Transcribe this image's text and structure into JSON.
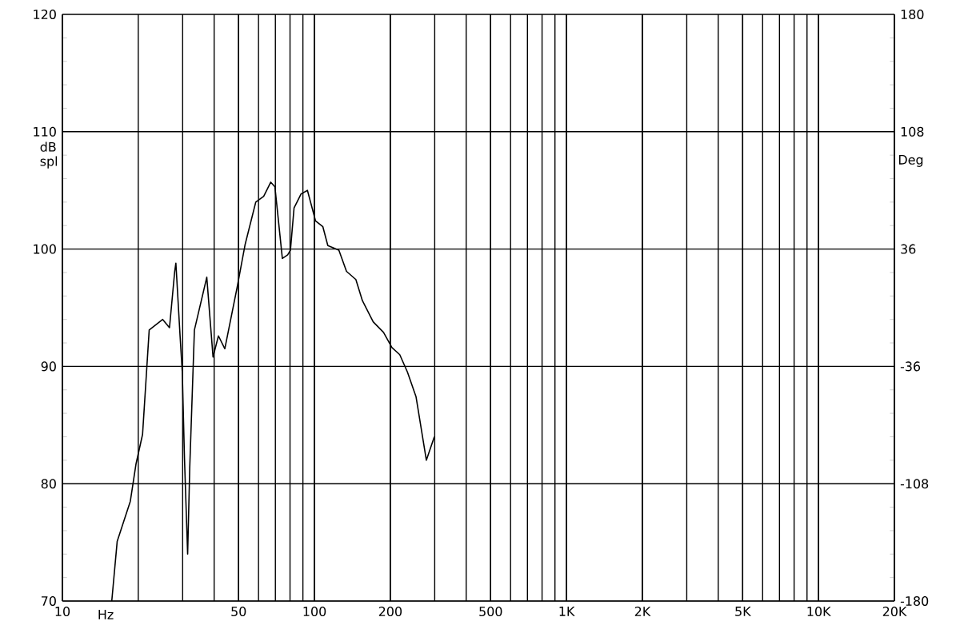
{
  "chart_data": {
    "type": "line",
    "xlabel": "Hz",
    "ylabel": "dB spl",
    "y2label": "Deg",
    "log": "x",
    "grid": true,
    "xlim": [
      10,
      20000
    ],
    "ylim": [
      70,
      120
    ],
    "y2lim": [
      -180,
      180
    ],
    "xticks": [
      {
        "value": 10,
        "label": "10"
      },
      {
        "value": 50,
        "label": "50"
      },
      {
        "value": 100,
        "label": "100"
      },
      {
        "value": 200,
        "label": "200"
      },
      {
        "value": 500,
        "label": "500"
      },
      {
        "value": 1000,
        "label": "1K"
      },
      {
        "value": 2000,
        "label": "2K"
      },
      {
        "value": 5000,
        "label": "5K"
      },
      {
        "value": 10000,
        "label": "10K"
      },
      {
        "value": 20000,
        "label": "20K"
      }
    ],
    "yticks": [
      70,
      80,
      90,
      100,
      110,
      120
    ],
    "y2ticks": [
      -180,
      -108,
      -36,
      36,
      108,
      180
    ],
    "series": [
      {
        "color": "#000000",
        "x": [
          15.7,
          16.5,
          18.6,
          19.6,
          20.8,
          22.1,
          25.0,
          26.6,
          27.9,
          28.2,
          29.3,
          29.9,
          30.5,
          31.4,
          32.0,
          33.4,
          37.4,
          39.6,
          41.6,
          44.1,
          49.3,
          53.1,
          58.5,
          62.9,
          67.1,
          69.7,
          74.6,
          78.3,
          80.3,
          83.0,
          88.5,
          93.8,
          101,
          108,
          113,
          125,
          134,
          146,
          155,
          171,
          188,
          203,
          218,
          234,
          253,
          278,
          299
        ],
        "values": [
          70,
          75.1,
          78.5,
          81.7,
          84.2,
          93.1,
          94.0,
          93.3,
          98.1,
          98.8,
          92.6,
          89.5,
          82.2,
          74.0,
          81.3,
          93.1,
          97.6,
          90.8,
          92.6,
          91.5,
          96.7,
          100.4,
          104.0,
          104.5,
          105.7,
          105.3,
          99.2,
          99.5,
          99.9,
          103.5,
          104.7,
          105.0,
          102.4,
          101.9,
          100.3,
          99.9,
          98.1,
          97.4,
          95.6,
          93.8,
          92.9,
          91.6,
          91.0,
          89.5,
          87.4,
          82.0,
          84.0
        ]
      }
    ]
  }
}
